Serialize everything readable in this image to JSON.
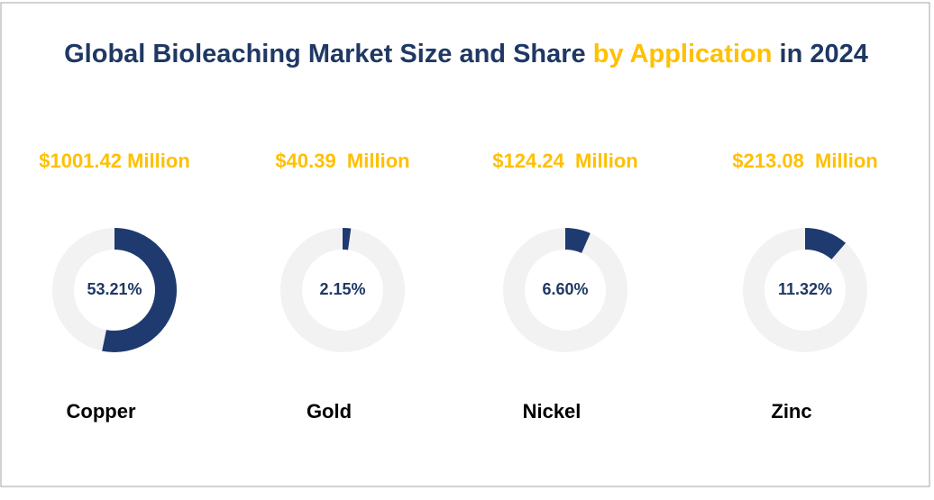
{
  "chart_data": {
    "type": "donut",
    "title": [
      "Global Bioleaching Market Size and Share",
      "by Application",
      "in 2024"
    ],
    "categories": [
      "Copper",
      "Gold",
      "Nickel",
      "Zinc"
    ],
    "market_sizes": [
      "$1001.42 Million",
      "$40.39  Million",
      "$124.24  Million",
      "$213.08  Million"
    ],
    "values": [
      53.21,
      2.15,
      6.6,
      11.32
    ],
    "value_labels": [
      "53.21%",
      "2.15%",
      "6.60%",
      "11.32%"
    ],
    "color": "#1f3a6e",
    "track_color": "#f2f2f2"
  }
}
